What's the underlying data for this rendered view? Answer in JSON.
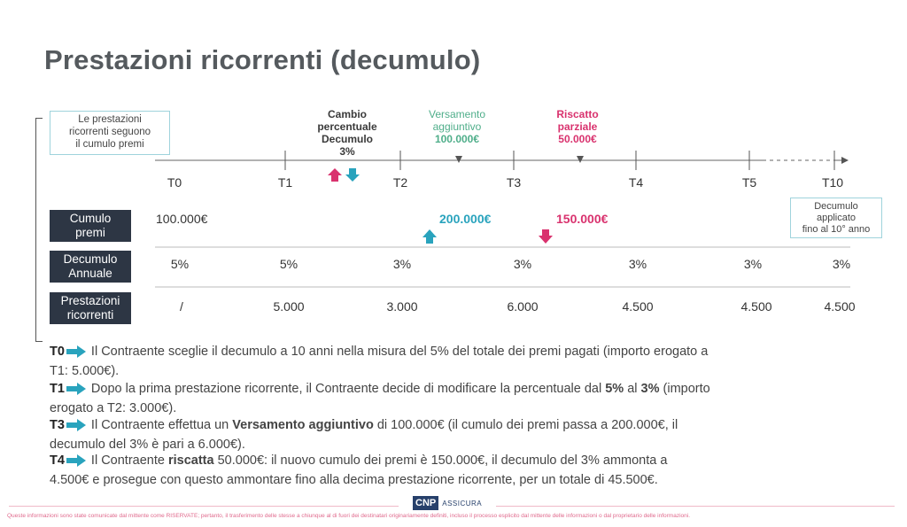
{
  "title": "Prestazioni ricorrenti (decumulo)",
  "intro_box": [
    "Le prestazioni",
    "ricorrenti seguono",
    "il cumulo premi"
  ],
  "events": {
    "cambio": [
      "Cambio",
      "percentuale",
      "Decumulo",
      "3%"
    ],
    "versamento": [
      "Versamento",
      "aggiuntivo",
      "100.000€"
    ],
    "riscatto": [
      "Riscatto",
      "parziale",
      "50.000€"
    ]
  },
  "timeline_ticks": [
    "T0",
    "T1",
    "T2",
    "T3",
    "T4",
    "T5",
    "T10"
  ],
  "rows": {
    "cumulo_label": [
      "Cumulo",
      "premi"
    ],
    "decumulo_label": [
      "Decumulo",
      "Annuale"
    ],
    "prestazioni_label": [
      "Prestazioni",
      "ricorrenti"
    ],
    "cumulo_values": [
      "100.000€",
      "200.000€",
      "150.000€"
    ],
    "decumulo_values": [
      "5%",
      "5%",
      "3%",
      "3%",
      "3%",
      "3%",
      "3%"
    ],
    "prestazioni_values": [
      "/",
      "5.000",
      "3.000",
      "6.000",
      "4.500",
      "4.500",
      "4.500"
    ]
  },
  "side_note": [
    "Decumulo",
    "applicato",
    "fino al 10° anno"
  ],
  "paragraphs": {
    "t0": {
      "key": "T0",
      "text": "Il Contraente sceglie il decumulo a 10 anni nella misura del 5% del totale dei premi pagati (importo erogato a",
      "text2": "T1: 5.000€)."
    },
    "t1": {
      "key": "T1",
      "a": "Dopo la prima prestazione ricorrente, il Contraente decide di modificare la percentuale dal ",
      "b": "5%",
      "c": " al ",
      "d": "3%",
      "e": " (importo",
      "text2": "erogato a T2: 3.000€)."
    },
    "t3": {
      "key": "T3",
      "a": "Il Contraente effettua un ",
      "b": "Versamento aggiuntivo",
      "c": " di 100.000€ (il cumulo dei premi passa a 200.000€, il",
      "text2": "decumulo del 3% è pari a 6.000€)."
    },
    "t4": {
      "key": "T4",
      "a": "Il Contraente ",
      "b": "riscatta",
      "c": " 50.000€: il nuovo cumulo dei premi è 150.000€, il decumulo del 3% ammonta a",
      "text2": "4.500€ e prosegue con questo ammontare fino alla decima prestazione ricorrente, per un totale di 45.500€."
    }
  },
  "logo": {
    "mark": "CNP",
    "sub": "ASSICURA"
  },
  "disclaimer": "Queste informazioni sono state comunicate dal mittente come RISERVATE; pertanto, il trasferimento delle stesse a chiunque al di fuori dei destinatari originariamente definiti, incluso il processo esplicito dal mittente delle informazioni o dal proprietario delle informazioni.",
  "colors": {
    "teal": "#29a3bd",
    "pink": "#d9326e",
    "green": "#4fae8a",
    "navy": "#2d3644"
  }
}
